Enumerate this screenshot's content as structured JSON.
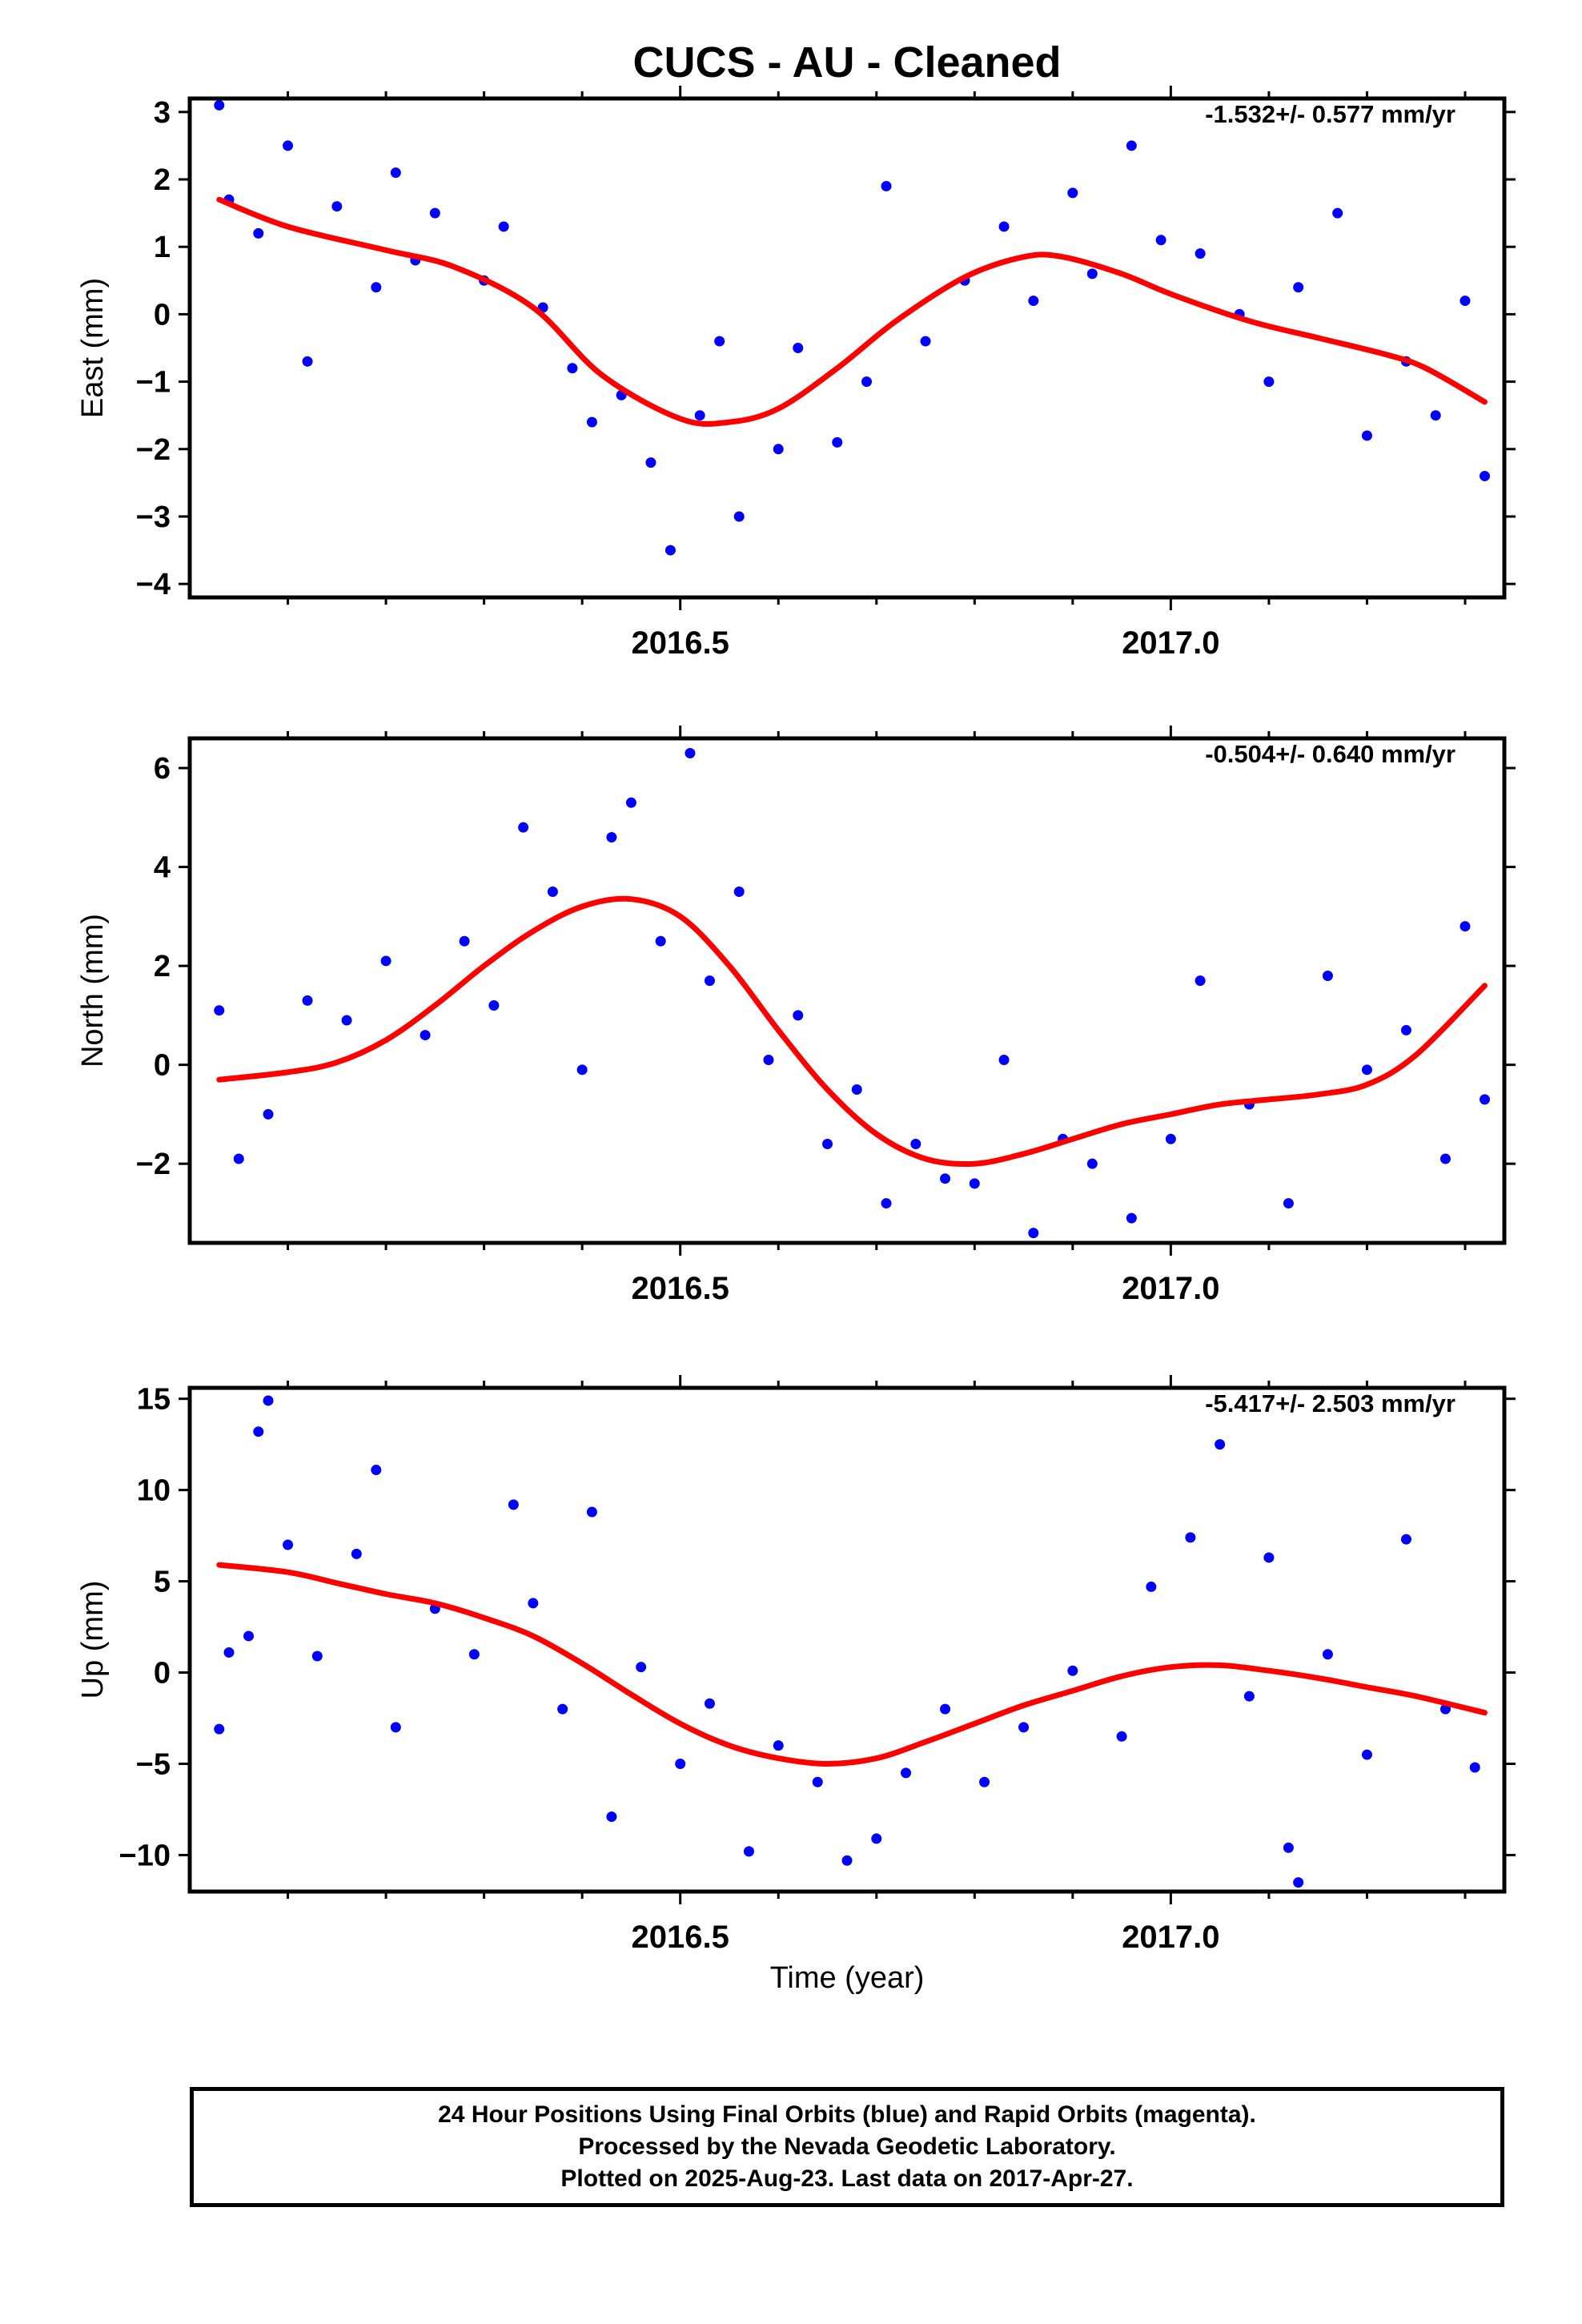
{
  "title": "CUCS  - AU - Cleaned",
  "colors": {
    "points": "#0000ff",
    "fit": "#ff0000",
    "frame": "#000000"
  },
  "xlabel": "Time (year)",
  "footer": {
    "lines": [
      "24 Hour Positions Using Final Orbits (blue) and Rapid Orbits (magenta).",
      "Processed by the Nevada Geodetic Laboratory.",
      "Plotted on 2025-Aug-23. Last data on 2017-Apr-27."
    ]
  },
  "chart_data": [
    {
      "type": "scatter",
      "component": "east",
      "ylabel": "East (mm)",
      "rate_label": "-1.532+/- 0.577 mm/yr",
      "xlim": [
        2016.0,
        2017.34
      ],
      "ylim": [
        -4.2,
        3.2
      ],
      "x_tick_labels": [
        "2016.5",
        "2017.0"
      ],
      "y_ticks": [
        3,
        2,
        1,
        0,
        -1,
        -2,
        -3,
        -4
      ],
      "y_tick_labels": [
        "3",
        "2",
        "1",
        "0",
        "−1",
        "−2",
        "−3",
        "−4"
      ],
      "fit": {
        "x": [
          2016.03,
          2016.1,
          2016.2,
          2016.27,
          2016.35,
          2016.42,
          2016.5,
          2016.55,
          2016.6,
          2016.66,
          2016.72,
          2016.79,
          2016.85,
          2016.89,
          2016.95,
          2017.0,
          2017.08,
          2017.15,
          2017.22,
          2017.26,
          2017.32
        ],
        "y": [
          1.7,
          1.3,
          0.95,
          0.7,
          0.1,
          -0.9,
          -1.55,
          -1.6,
          -1.4,
          -0.8,
          -0.1,
          0.55,
          0.85,
          0.85,
          0.6,
          0.3,
          -0.1,
          -0.35,
          -0.6,
          -0.8,
          -1.3
        ]
      },
      "series": [
        {
          "x": [
            2016.03,
            2016.04,
            2016.07,
            2016.1,
            2016.12,
            2016.15,
            2016.19,
            2016.21,
            2016.23,
            2016.25,
            2016.3,
            2016.32,
            2016.36,
            2016.39,
            2016.41,
            2016.44,
            2016.47,
            2016.49,
            2016.52,
            2016.54,
            2016.56,
            2016.6,
            2016.62,
            2016.66,
            2016.69,
            2016.71,
            2016.75,
            2016.79,
            2016.83,
            2016.86,
            2016.9,
            2016.92,
            2016.96,
            2016.99,
            2017.03,
            2017.07,
            2017.1,
            2017.13,
            2017.17,
            2017.2,
            2017.24,
            2017.27,
            2017.3,
            2017.32
          ],
          "y": [
            3.1,
            1.7,
            1.2,
            2.5,
            -0.7,
            1.6,
            0.4,
            2.1,
            0.8,
            1.5,
            0.5,
            1.3,
            0.1,
            -0.8,
            -1.6,
            -1.2,
            -2.2,
            -3.5,
            -1.5,
            -0.4,
            -3.0,
            -2.0,
            -0.5,
            -1.9,
            -1.0,
            1.9,
            -0.4,
            0.5,
            1.3,
            0.2,
            1.8,
            0.6,
            2.5,
            1.1,
            0.9,
            0.0,
            -1.0,
            0.4,
            1.5,
            -1.8,
            -0.7,
            -1.5,
            0.2,
            -2.4
          ]
        }
      ]
    },
    {
      "type": "scatter",
      "component": "north",
      "ylabel": "North (mm)",
      "rate_label": "-0.504+/- 0.640 mm/yr",
      "xlim": [
        2016.0,
        2017.34
      ],
      "ylim": [
        -3.6,
        6.6
      ],
      "x_tick_labels": [
        "2016.5",
        "2017.0"
      ],
      "y_ticks": [
        6,
        4,
        2,
        0,
        -2
      ],
      "y_tick_labels": [
        "6",
        "4",
        "2",
        "0",
        "−2"
      ],
      "fit": {
        "x": [
          2016.03,
          2016.1,
          2016.15,
          2016.2,
          2016.25,
          2016.3,
          2016.35,
          2016.4,
          2016.45,
          2016.5,
          2016.55,
          2016.6,
          2016.65,
          2016.7,
          2016.75,
          2016.8,
          2016.85,
          2016.9,
          2016.95,
          2017.0,
          2017.05,
          2017.1,
          2017.15,
          2017.2,
          2017.25,
          2017.32
        ],
        "y": [
          -0.3,
          -0.15,
          0.05,
          0.5,
          1.2,
          2.0,
          2.7,
          3.2,
          3.35,
          3.0,
          2.0,
          0.7,
          -0.5,
          -1.4,
          -1.9,
          -2.0,
          -1.8,
          -1.5,
          -1.2,
          -1.0,
          -0.8,
          -0.7,
          -0.6,
          -0.4,
          0.2,
          1.6
        ]
      },
      "series": [
        {
          "x": [
            2016.03,
            2016.05,
            2016.08,
            2016.12,
            2016.16,
            2016.2,
            2016.24,
            2016.28,
            2016.31,
            2016.34,
            2016.37,
            2016.4,
            2016.43,
            2016.45,
            2016.48,
            2016.51,
            2016.53,
            2016.56,
            2016.59,
            2016.62,
            2016.65,
            2016.68,
            2016.71,
            2016.74,
            2016.77,
            2016.8,
            2016.83,
            2016.86,
            2016.89,
            2016.92,
            2016.96,
            2017.0,
            2017.03,
            2017.08,
            2017.12,
            2017.16,
            2017.2,
            2017.24,
            2017.28,
            2017.3,
            2017.32
          ],
          "y": [
            1.1,
            -1.9,
            -1.0,
            1.3,
            0.9,
            2.1,
            0.6,
            2.5,
            1.2,
            4.8,
            3.5,
            -0.1,
            4.6,
            5.3,
            2.5,
            6.3,
            1.7,
            3.5,
            0.1,
            1.0,
            -1.6,
            -0.5,
            -2.8,
            -1.6,
            -2.3,
            -2.4,
            0.1,
            -3.4,
            -1.5,
            -2.0,
            -3.1,
            -1.5,
            1.7,
            -0.8,
            -2.8,
            1.8,
            -0.1,
            0.7,
            -1.9,
            2.8,
            -0.7
          ]
        }
      ]
    },
    {
      "type": "scatter",
      "component": "up",
      "ylabel": "Up (mm)",
      "rate_label": "-5.417+/- 2.503 mm/yr",
      "xlim": [
        2016.0,
        2017.34
      ],
      "ylim": [
        -12,
        15.6
      ],
      "x_tick_labels": [
        "2016.5",
        "2017.0"
      ],
      "y_ticks": [
        15,
        10,
        5,
        0,
        -5,
        -10
      ],
      "y_tick_labels": [
        "15",
        "10",
        "5",
        "0",
        "−5",
        "−10"
      ],
      "fit": {
        "x": [
          2016.03,
          2016.1,
          2016.15,
          2016.2,
          2016.25,
          2016.3,
          2016.35,
          2016.4,
          2016.45,
          2016.5,
          2016.55,
          2016.6,
          2016.65,
          2016.7,
          2016.75,
          2016.8,
          2016.85,
          2016.9,
          2016.95,
          2017.0,
          2017.05,
          2017.1,
          2017.15,
          2017.2,
          2017.25,
          2017.32
        ],
        "y": [
          5.9,
          5.5,
          4.9,
          4.3,
          3.8,
          3.0,
          2.0,
          0.5,
          -1.2,
          -2.8,
          -4.0,
          -4.7,
          -5.0,
          -4.7,
          -3.8,
          -2.8,
          -1.8,
          -1.0,
          -0.2,
          0.3,
          0.4,
          0.1,
          -0.3,
          -0.8,
          -1.3,
          -2.2
        ]
      },
      "series": [
        {
          "x": [
            2016.03,
            2016.04,
            2016.06,
            2016.07,
            2016.08,
            2016.1,
            2016.13,
            2016.17,
            2016.19,
            2016.21,
            2016.25,
            2016.29,
            2016.33,
            2016.35,
            2016.38,
            2016.41,
            2016.43,
            2016.46,
            2016.5,
            2016.53,
            2016.57,
            2016.6,
            2016.64,
            2016.67,
            2016.7,
            2016.73,
            2016.77,
            2016.81,
            2016.85,
            2016.9,
            2016.95,
            2016.98,
            2017.02,
            2017.05,
            2017.08,
            2017.1,
            2017.12,
            2017.13,
            2017.16,
            2017.2,
            2017.24,
            2017.28,
            2017.31
          ],
          "y": [
            -3.1,
            1.1,
            2.0,
            13.2,
            14.9,
            7.0,
            0.9,
            6.5,
            11.1,
            -3.0,
            3.5,
            1.0,
            9.2,
            3.8,
            -2.0,
            8.8,
            -7.9,
            0.3,
            -5.0,
            -1.7,
            -9.8,
            -4.0,
            -6.0,
            -10.3,
            -9.1,
            -5.5,
            -2.0,
            -6.0,
            -3.0,
            0.1,
            -3.5,
            4.7,
            7.4,
            12.5,
            -1.3,
            6.3,
            -9.6,
            -11.5,
            1.0,
            -4.5,
            7.3,
            -2.0,
            -5.2
          ]
        }
      ]
    }
  ]
}
